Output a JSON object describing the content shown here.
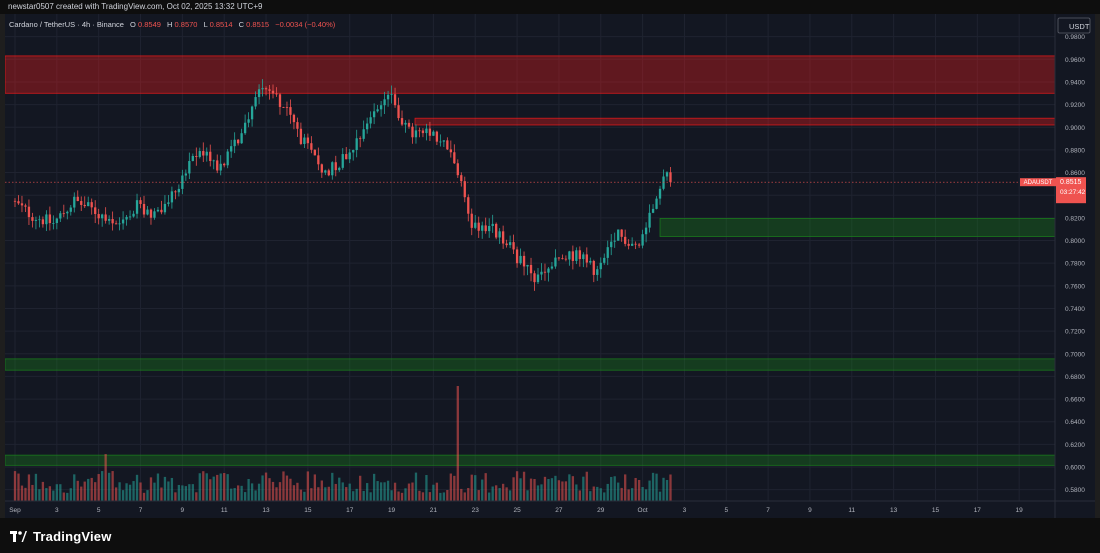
{
  "header": {
    "attribution": "newstar0507 created with TradingView.com, Oct 02, 2025 13:32 UTC+9"
  },
  "legend": {
    "symbol": "Cardano / TetherUS · 4h · Binance",
    "o_label": "O",
    "o_value": "0.8549",
    "h_label": "H",
    "h_value": "0.8570",
    "l_label": "L",
    "l_value": "0.8514",
    "c_label": "C",
    "c_value": "0.8515",
    "change": "−0.0034 (−0.40%)"
  },
  "price_axis": {
    "currency": "USDT",
    "ticks": [
      "0.9800",
      "0.9600",
      "0.9400",
      "0.9200",
      "0.9000",
      "0.8800",
      "0.8600",
      "0.8400",
      "0.8200",
      "0.8000",
      "0.7800",
      "0.7600",
      "0.7400",
      "0.7200",
      "0.7000",
      "0.6800",
      "0.6600",
      "0.6400",
      "0.6200",
      "0.6000",
      "0.5800"
    ]
  },
  "last_price": {
    "symbol": "ADAUSDT",
    "price": "0.8515",
    "countdown": "03:27:42"
  },
  "time_axis": {
    "labels": [
      "Sep",
      "3",
      "5",
      "7",
      "9",
      "11",
      "13",
      "15",
      "17",
      "19",
      "21",
      "23",
      "25",
      "27",
      "29",
      "Oct",
      "3",
      "5",
      "7",
      "9",
      "11",
      "13",
      "15",
      "17",
      "19"
    ]
  },
  "footer": {
    "brand": "TradingView"
  },
  "colors": {
    "up": "#26a69a",
    "down": "#ef5350",
    "zone_red": "#ff1a1a",
    "zone_green": "#1b8a1b",
    "background": "#131722"
  },
  "chart_data": {
    "type": "candlestick",
    "symbol": "ADAUSDT",
    "interval": "4h",
    "exchange": "Binance",
    "ylim": [
      0.57,
      1.0
    ],
    "grid": true,
    "x_range": [
      "2025-09-01",
      "2025-10-20"
    ],
    "anchors": [
      {
        "date": "2025-09-01",
        "close": 0.835
      },
      {
        "date": "2025-09-02",
        "close": 0.822
      },
      {
        "date": "2025-09-03",
        "close": 0.815
      },
      {
        "date": "2025-09-04",
        "close": 0.835
      },
      {
        "date": "2025-09-05",
        "close": 0.826
      },
      {
        "date": "2025-09-06",
        "close": 0.81
      },
      {
        "date": "2025-09-07",
        "close": 0.83
      },
      {
        "date": "2025-09-08",
        "close": 0.822
      },
      {
        "date": "2025-09-09",
        "close": 0.85
      },
      {
        "date": "2025-09-10",
        "close": 0.88
      },
      {
        "date": "2025-09-11",
        "close": 0.865
      },
      {
        "date": "2025-09-12",
        "close": 0.895
      },
      {
        "date": "2025-09-13",
        "close": 0.94
      },
      {
        "date": "2025-09-14",
        "close": 0.92
      },
      {
        "date": "2025-09-15",
        "close": 0.885
      },
      {
        "date": "2025-09-16",
        "close": 0.86
      },
      {
        "date": "2025-09-17",
        "close": 0.875
      },
      {
        "date": "2025-09-18",
        "close": 0.905
      },
      {
        "date": "2025-09-19",
        "close": 0.93
      },
      {
        "date": "2025-09-20",
        "close": 0.895
      },
      {
        "date": "2025-09-21",
        "close": 0.893
      },
      {
        "date": "2025-09-22",
        "close": 0.88
      },
      {
        "date": "2025-09-23",
        "close": 0.815
      },
      {
        "date": "2025-09-24",
        "close": 0.81
      },
      {
        "date": "2025-09-25",
        "close": 0.79
      },
      {
        "date": "2025-09-26",
        "close": 0.765
      },
      {
        "date": "2025-09-27",
        "close": 0.78
      },
      {
        "date": "2025-09-28",
        "close": 0.788
      },
      {
        "date": "2025-09-29",
        "close": 0.772
      },
      {
        "date": "2025-09-30",
        "close": 0.805
      },
      {
        "date": "2025-10-01",
        "close": 0.795
      },
      {
        "date": "2025-10-02",
        "close": 0.8515
      }
    ],
    "volume_peak_date": "2025-09-22",
    "zones": [
      {
        "color": "red",
        "from": 0.93,
        "to": 0.963
      },
      {
        "color": "red",
        "from": 0.902,
        "to": 0.908
      },
      {
        "color": "green",
        "from": 0.8035,
        "to": 0.8195
      },
      {
        "color": "green",
        "from": 0.6855,
        "to": 0.6955
      },
      {
        "color": "green",
        "from": 0.6015,
        "to": 0.6105
      }
    ]
  }
}
